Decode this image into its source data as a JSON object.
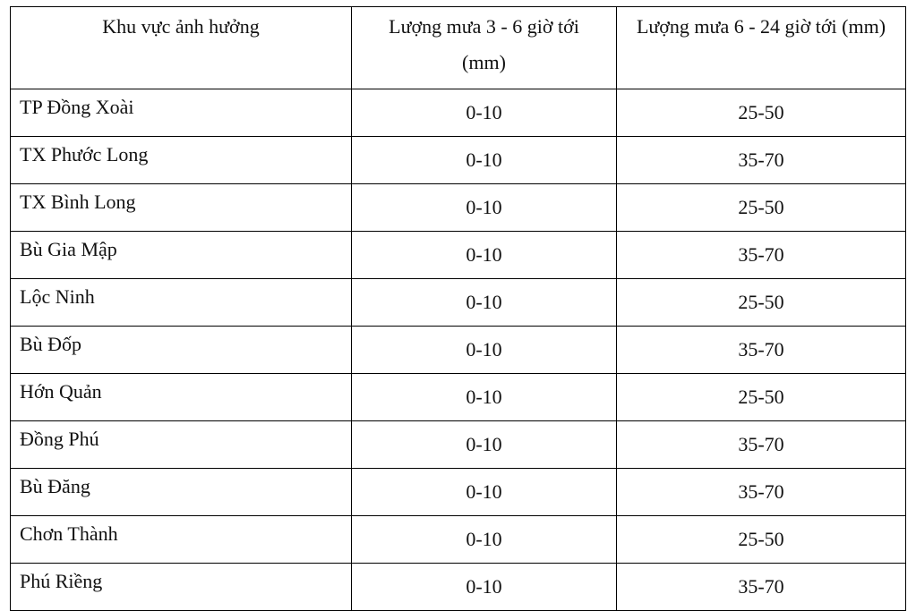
{
  "table": {
    "header": [
      "Khu vực ảnh hưởng",
      "Lượng mưa 3 - 6 giờ tới (mm)",
      "Lượng mưa 6 - 24 giờ tới (mm)"
    ],
    "rows": [
      [
        "TP Đồng Xoài",
        "0-10",
        "25-50"
      ],
      [
        "TX Phước Long",
        "0-10",
        "35-70"
      ],
      [
        "TX Bình Long",
        "0-10",
        "25-50"
      ],
      [
        "Bù Gia Mập",
        "0-10",
        "35-70"
      ],
      [
        "Lộc Ninh",
        "0-10",
        "25-50"
      ],
      [
        "Bù Đốp",
        "0-10",
        "35-70"
      ],
      [
        "Hớn Quản",
        "0-10",
        "25-50"
      ],
      [
        "Đồng Phú",
        "0-10",
        "35-70"
      ],
      [
        "Bù Đăng",
        "0-10",
        "35-70"
      ],
      [
        "Chơn Thành",
        "0-10",
        "25-50"
      ],
      [
        "Phú Riềng",
        "0-10",
        "35-70"
      ]
    ]
  }
}
